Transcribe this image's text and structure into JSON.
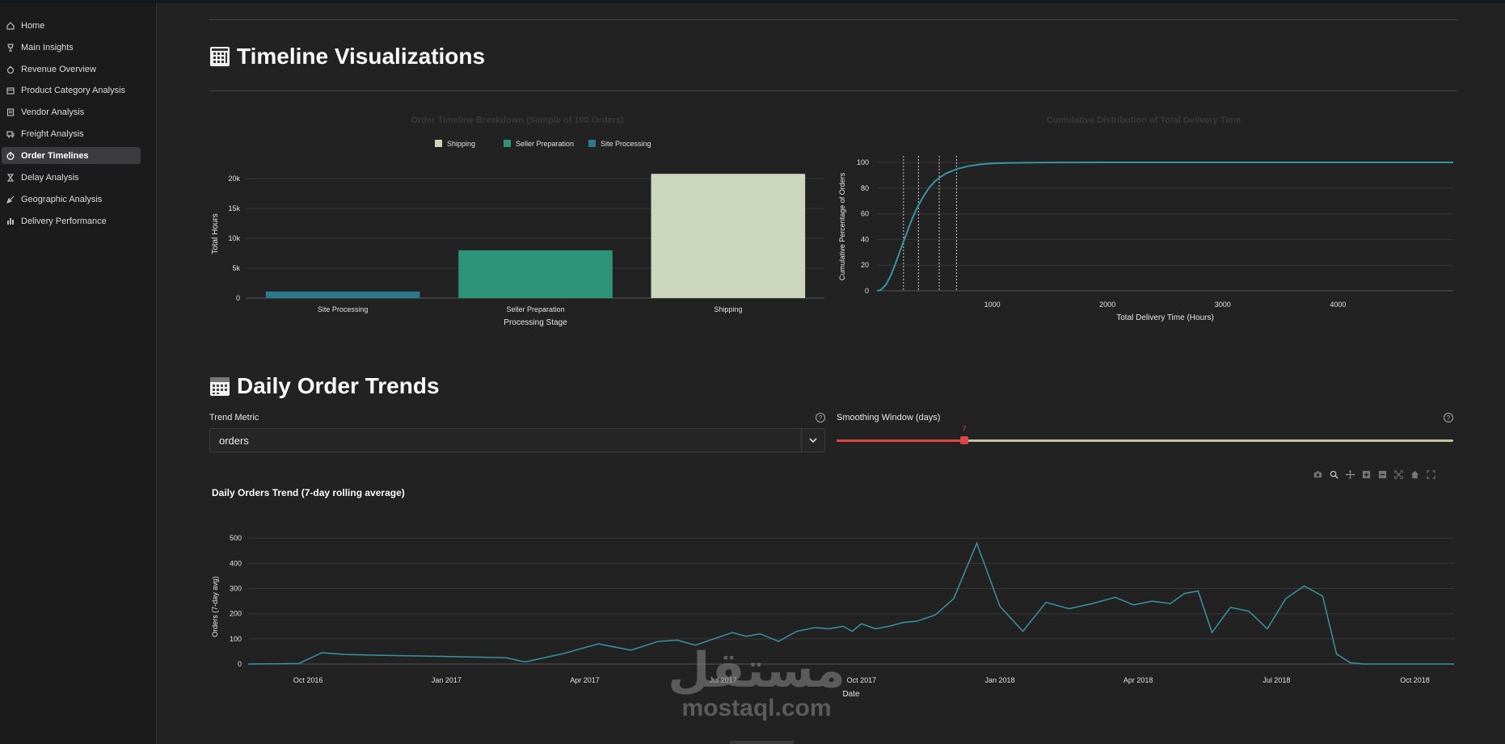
{
  "sidebar": {
    "items": [
      {
        "label": "Home",
        "icon": "home-icon"
      },
      {
        "label": "Main Insights",
        "icon": "trophy-icon"
      },
      {
        "label": "Revenue Overview",
        "icon": "money-bag-icon"
      },
      {
        "label": "Product Category Analysis",
        "icon": "package-icon"
      },
      {
        "label": "Vendor Analysis",
        "icon": "store-icon"
      },
      {
        "label": "Freight Analysis",
        "icon": "truck-icon"
      },
      {
        "label": "Order Timelines",
        "icon": "stopwatch-icon",
        "active": true
      },
      {
        "label": "Delay Analysis",
        "icon": "hourglass-icon"
      },
      {
        "label": "Geographic Analysis",
        "icon": "pin-icon"
      },
      {
        "label": "Delivery Performance",
        "icon": "bar-chart-icon"
      }
    ]
  },
  "sections": {
    "timeline_title": "Timeline Visualizations",
    "daily_title": "Daily Order Trends"
  },
  "controls": {
    "trend_metric_label": "Trend Metric",
    "trend_metric_value": "orders",
    "smoothing_label": "Smoothing Window (days)",
    "smoothing_value": "7",
    "smoothing_min": 1,
    "smoothing_max": 30,
    "smoothing_current": 7
  },
  "colors": {
    "shipping": "#cbd6bd",
    "seller_preparation": "#2e9479",
    "site_processing": "#2d7b8a",
    "line": "#3a93a4",
    "slider_accent": "#e04545"
  },
  "watermark": {
    "arabic": "مستقل",
    "latin": "mostaql.com"
  },
  "chart_data": [
    {
      "id": "order-timeline-breakdown",
      "type": "bar",
      "title": "Order Timeline Breakdown (Sample of 100 Orders)",
      "xlabel": "Processing Stage",
      "ylabel": "Total Hours",
      "categories": [
        "Site Processing",
        "Seller Preparation",
        "Shipping"
      ],
      "values": [
        1100,
        8000,
        20800
      ],
      "legend": [
        "Shipping",
        "Seller Preparation",
        "Site Processing"
      ],
      "yticks": [
        0,
        5000,
        10000,
        15000,
        20000
      ],
      "ytick_labels": [
        "0",
        "5k",
        "10k",
        "15k",
        "20k"
      ],
      "ylim": [
        0,
        21500
      ]
    },
    {
      "id": "cumulative-delivery",
      "type": "line",
      "title": "Cumulative Distribution of Total Delivery Time",
      "xlabel": "Total Delivery Time (Hours)",
      "ylabel": "Cumulative Percentage of Orders",
      "xticks": [
        1000,
        2000,
        3000,
        4000
      ],
      "yticks": [
        0,
        20,
        40,
        60,
        80,
        100
      ],
      "xlim": [
        0,
        5000
      ],
      "ylim": [
        0,
        100
      ],
      "x": [
        0,
        20,
        40,
        80,
        120,
        160,
        200,
        250,
        300,
        350,
        400,
        450,
        500,
        550,
        600,
        700,
        800,
        900,
        1000,
        1200,
        1500,
        2000,
        3000,
        4000,
        5000
      ],
      "y": [
        0,
        0.3,
        1.2,
        5,
        12,
        21,
        31,
        43,
        55,
        65,
        73,
        80,
        85,
        88.5,
        91.5,
        95,
        97.2,
        98.5,
        99.2,
        99.7,
        99.9,
        100,
        100,
        100,
        100
      ],
      "reference_lines": [
        230,
        360,
        540,
        690
      ]
    },
    {
      "id": "daily-orders-trend",
      "type": "line",
      "title": "Daily Orders Trend (7-day rolling average)",
      "xlabel": "Date",
      "ylabel": "Orders (7-day avg)",
      "xticks": [
        "Oct 2016",
        "Jan 2017",
        "Apr 2017",
        "Jul 2017",
        "Oct 2017",
        "Jan 2018",
        "Apr 2018",
        "Jul 2018",
        "Oct 2018"
      ],
      "yticks": [
        0,
        100,
        200,
        300,
        400,
        500
      ],
      "ylim": [
        0,
        520
      ],
      "x_months_range": [
        -1.3,
        24.85
      ],
      "x_months": [
        -1.3,
        -0.2,
        0.3,
        0.8,
        1.5,
        3.0,
        4.3,
        4.7,
        5.5,
        6.3,
        7.0,
        7.6,
        8.0,
        8.4,
        8.8,
        9.2,
        9.5,
        9.8,
        10.2,
        10.6,
        11.0,
        11.3,
        11.6,
        11.8,
        12.0,
        12.3,
        12.6,
        12.9,
        13.2,
        13.6,
        14.0,
        14.5,
        15.0,
        15.5,
        16.0,
        16.5,
        17.0,
        17.5,
        17.9,
        18.3,
        18.7,
        19.0,
        19.3,
        19.6,
        20.0,
        20.4,
        20.8,
        21.2,
        21.6,
        22.0,
        22.3,
        22.6,
        22.9,
        23.2,
        23.5,
        24.0,
        24.85
      ],
      "values": [
        0,
        2,
        45,
        38,
        35,
        30,
        25,
        8,
        40,
        80,
        55,
        90,
        95,
        75,
        100,
        125,
        110,
        120,
        90,
        130,
        145,
        140,
        150,
        130,
        160,
        140,
        150,
        165,
        170,
        195,
        260,
        480,
        230,
        130,
        245,
        220,
        240,
        265,
        235,
        250,
        240,
        280,
        290,
        125,
        225,
        210,
        140,
        260,
        310,
        270,
        40,
        5,
        0,
        0,
        0,
        0,
        0
      ]
    }
  ]
}
